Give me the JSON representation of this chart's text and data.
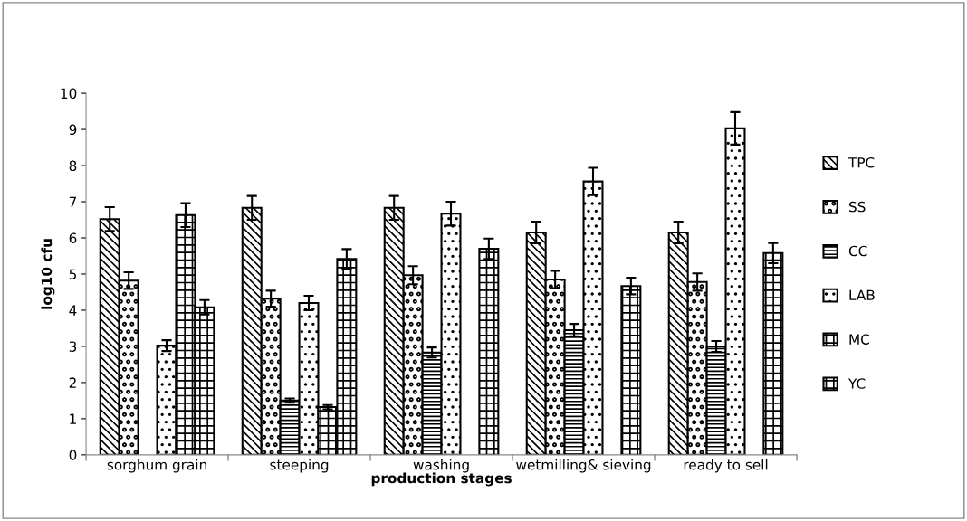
{
  "chart_data": {
    "type": "bar",
    "xlabel": "production stages",
    "ylabel": "log10 cfu",
    "categories": [
      "sorghum grain",
      "steeping",
      "washing",
      "wetmilling& sieving",
      "ready to sell"
    ],
    "ylim": [
      0,
      10
    ],
    "yticks": [
      0,
      1,
      2,
      3,
      4,
      5,
      6,
      7,
      8,
      9,
      10
    ],
    "grid": false,
    "legend": "right",
    "series": [
      {
        "name": "TPC",
        "color": "#000000",
        "values": [
          6.52,
          6.83,
          6.83,
          6.15,
          6.15
        ],
        "errors": [
          0.33,
          0.33,
          0.33,
          0.3,
          0.3
        ]
      },
      {
        "name": "SS",
        "color": "#000000",
        "values": [
          4.82,
          4.32,
          4.97,
          4.85,
          4.78
        ],
        "errors": [
          0.23,
          0.22,
          0.25,
          0.24,
          0.24
        ]
      },
      {
        "name": "CC",
        "color": "#000000",
        "values": [
          null,
          1.5,
          2.83,
          3.45,
          3.0
        ],
        "errors": [
          null,
          0.06,
          0.14,
          0.17,
          0.15
        ]
      },
      {
        "name": "LAB",
        "color": "#000000",
        "values": [
          3.02,
          4.2,
          6.67,
          7.56,
          9.03
        ],
        "errors": [
          0.15,
          0.2,
          0.33,
          0.38,
          0.45
        ]
      },
      {
        "name": "MC",
        "color": "#000000",
        "values": [
          6.63,
          1.32,
          null,
          null,
          null
        ],
        "errors": [
          0.33,
          0.06,
          null,
          null,
          null
        ]
      },
      {
        "name": "YC",
        "color": "#000000",
        "values": [
          4.08,
          5.42,
          5.7,
          4.67,
          5.58
        ],
        "errors": [
          0.2,
          0.27,
          0.28,
          0.23,
          0.28
        ]
      }
    ]
  }
}
